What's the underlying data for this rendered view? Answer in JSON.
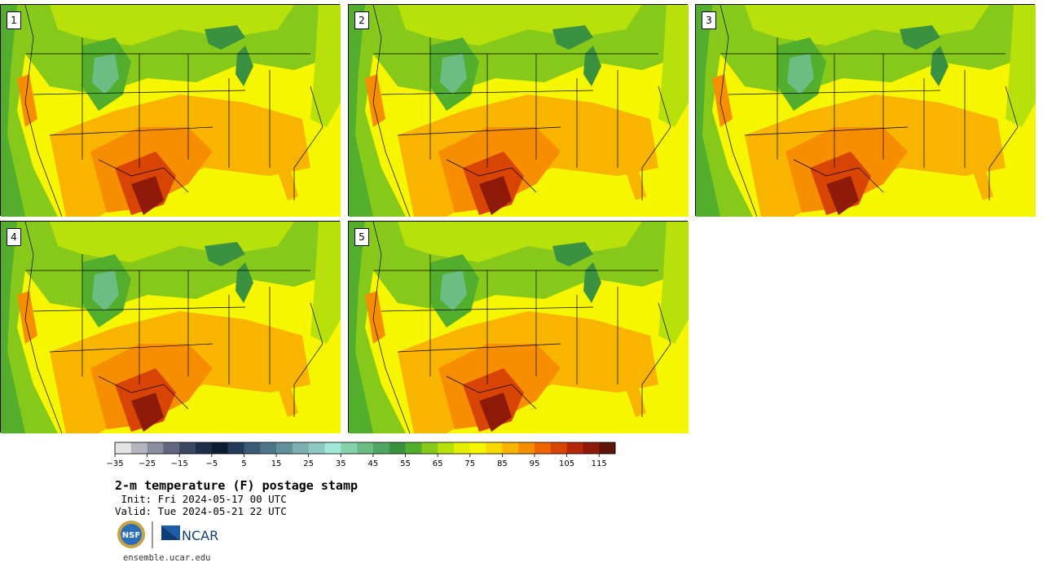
{
  "panels": [
    {
      "label": "1"
    },
    {
      "label": "2"
    },
    {
      "label": "3"
    },
    {
      "label": "4"
    },
    {
      "label": "5"
    }
  ],
  "colorbar": {
    "colors": [
      "#e4e4e4",
      "#b5b5bf",
      "#8b8ea0",
      "#62667f",
      "#3b4660",
      "#1f2d48",
      "#0d1b33",
      "#233a58",
      "#3b5a75",
      "#4e7487",
      "#62909a",
      "#7aaeaf",
      "#8ec9c1",
      "#a2e7d6",
      "#86d1aa",
      "#6cbd84",
      "#4fa663",
      "#3a9140",
      "#52ae2c",
      "#86c91a",
      "#b8e00a",
      "#e4ef05",
      "#f6f600",
      "#fbd800",
      "#f9b400",
      "#f78e00",
      "#f06400",
      "#d84404",
      "#b52708",
      "#8e1b0a",
      "#5e140a"
    ],
    "tick_labels": [
      "−35",
      "−25",
      "−15",
      "−5",
      "5",
      "15",
      "25",
      "35",
      "45",
      "55",
      "65",
      "75",
      "85",
      "95",
      "105",
      "115"
    ]
  },
  "header": {
    "title": "2-m temperature (F) postage stamp",
    "init": " Init: Fri 2024-05-17 00 UTC",
    "valid": "Valid: Tue 2024-05-21 22 UTC"
  },
  "logos": {
    "nsf_text": "NSF",
    "ncar_text": "NCAR"
  },
  "footer": {
    "url": "ensemble.ucar.edu"
  }
}
